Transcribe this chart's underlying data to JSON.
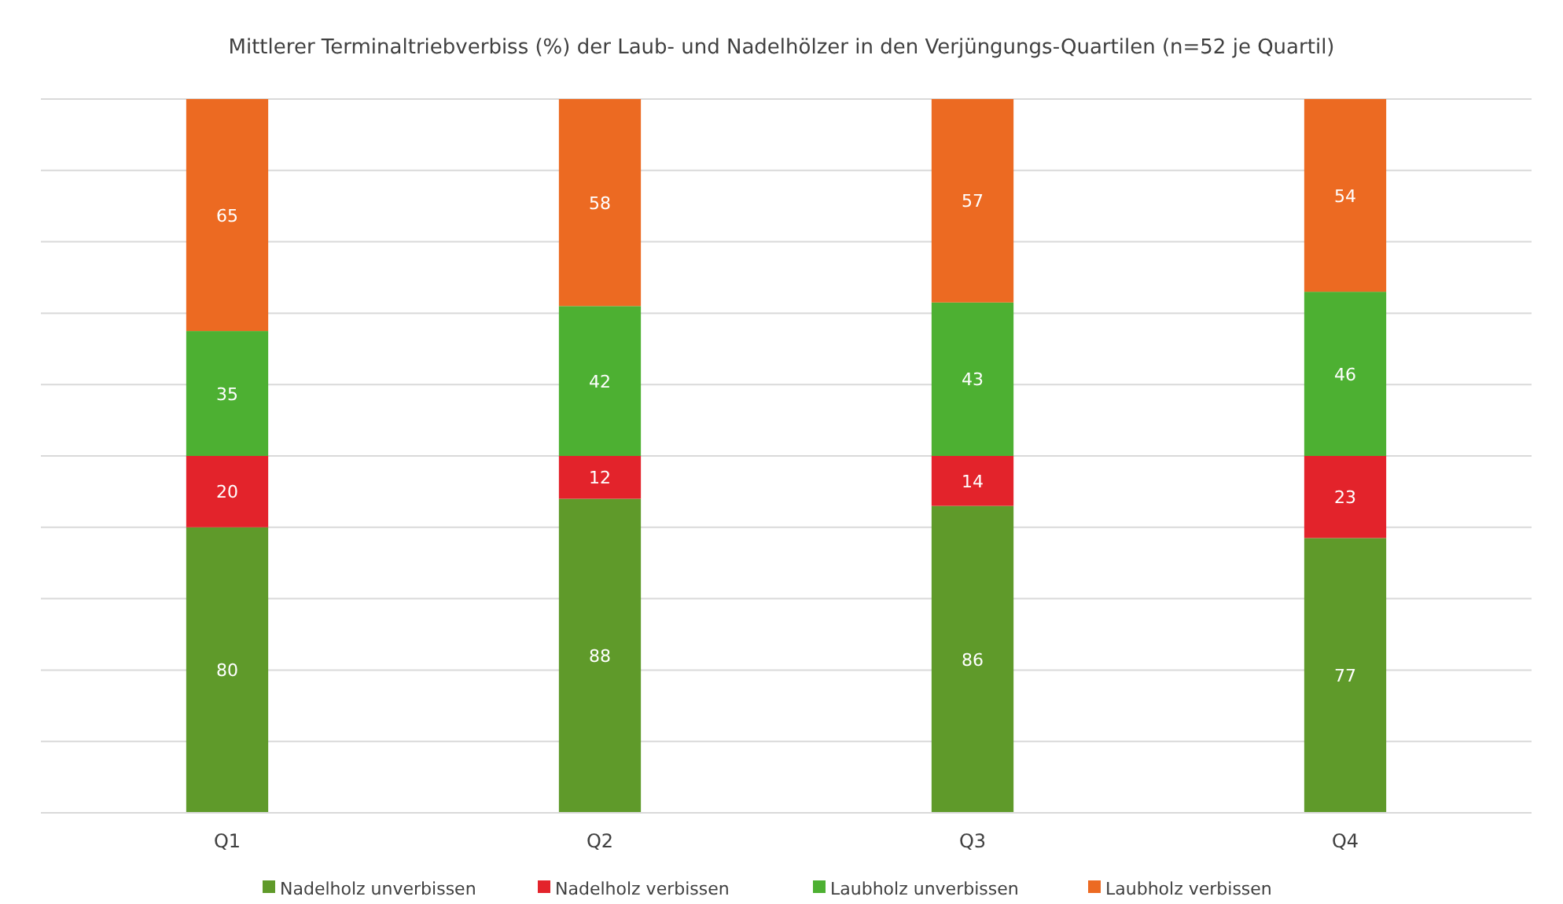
{
  "chart_data": {
    "type": "bar",
    "title": "Mittlerer Terminaltriebverbiss (%) der Laub- und Nadelhölzer in den Verjüngungs-Quartilen  (n=52 je Quartil)",
    "categories": [
      "Q1",
      "Q2",
      "Q3",
      "Q4"
    ],
    "stacked": true,
    "data_labels": true,
    "grid": "y",
    "legend": "bottom",
    "tick_labels": "x",
    "ylim": [
      0,
      200
    ],
    "yticks": [
      {
        "value": 0,
        "label": null
      },
      {
        "value": 20,
        "label": null
      },
      {
        "value": 40,
        "label": null
      },
      {
        "value": 60,
        "label": null
      },
      {
        "value": 80,
        "label": null
      },
      {
        "value": 100,
        "label": null
      },
      {
        "value": 120,
        "label": null
      },
      {
        "value": 140,
        "label": null
      },
      {
        "value": 160,
        "label": null
      },
      {
        "value": 180,
        "label": null
      },
      {
        "value": 200,
        "label": null
      }
    ],
    "series": [
      {
        "name": "Nadelholz unverbissen",
        "color": "#5f9a2a",
        "values": [
          80,
          88,
          86,
          77
        ]
      },
      {
        "name": "Nadelholz verbissen",
        "color": "#e3232b",
        "values": [
          20,
          12,
          14,
          23
        ]
      },
      {
        "name": "Laubholz unverbissen",
        "color": "#4db032",
        "values": [
          35,
          42,
          43,
          46
        ]
      },
      {
        "name": "Laubholz verbissen",
        "color": "#ec6a22",
        "values": [
          65,
          58,
          57,
          54
        ]
      }
    ]
  }
}
